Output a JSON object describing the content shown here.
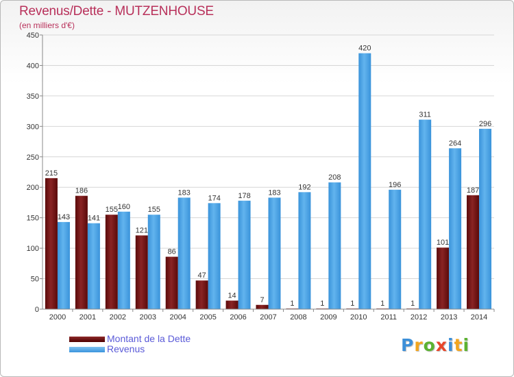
{
  "chart_data": {
    "type": "bar",
    "title": "Revenus/Dette - MUTZENHOUSE",
    "subtitle": "(en milliers d'€)",
    "categories": [
      "2000",
      "2001",
      "2002",
      "2003",
      "2004",
      "2005",
      "2006",
      "2007",
      "2008",
      "2009",
      "2010",
      "2011",
      "2012",
      "2013",
      "2014"
    ],
    "series": [
      {
        "name": "Montant de la Dette",
        "color": "#7a1818",
        "values": [
          215,
          186,
          155,
          121,
          86,
          47,
          14,
          7,
          1,
          1,
          1,
          1,
          1,
          101,
          187
        ]
      },
      {
        "name": "Revenus",
        "color": "#4ea6e6",
        "values": [
          143,
          141,
          160,
          155,
          183,
          174,
          178,
          183,
          192,
          208,
          420,
          196,
          311,
          264,
          296
        ]
      }
    ],
    "ylim": [
      0,
      450
    ],
    "yticks": [
      0,
      50,
      100,
      150,
      200,
      250,
      300,
      350,
      400,
      450
    ],
    "grid": true,
    "legend_position": "bottom-left"
  },
  "logo": {
    "letters": [
      "P",
      "r",
      "o",
      "x",
      "i",
      "t",
      "i"
    ],
    "colors": [
      "#3c8fd8",
      "#f2a51e",
      "#5bb231",
      "#e8462a",
      "#3c8fd8",
      "#f2a51e",
      "#5bb231"
    ]
  }
}
